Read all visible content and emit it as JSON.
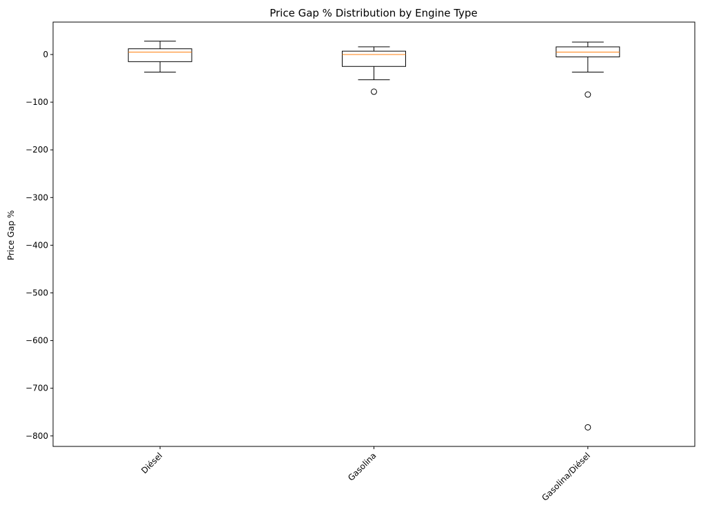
{
  "chart_data": {
    "type": "box",
    "title": "Price Gap % Distribution by Engine Type",
    "xlabel": "",
    "ylabel": "Price Gap %",
    "ylim": [
      -822,
      68
    ],
    "yticks": [
      0,
      -100,
      -200,
      -300,
      -400,
      -500,
      -600,
      -700,
      -800
    ],
    "ytick_labels": [
      "0",
      "−100",
      "−200",
      "−300",
      "−400",
      "−500",
      "−600",
      "−700",
      "−800"
    ],
    "categories": [
      "Diésel",
      "Gasolina",
      "Gasolina/Diésel"
    ],
    "xtick_rotation": 45,
    "grid": false,
    "boxes": [
      {
        "category": "Diésel",
        "whisker_low": -37,
        "q1": -15,
        "median": 5,
        "q3": 12,
        "whisker_high": 28,
        "outliers": []
      },
      {
        "category": "Gasolina",
        "whisker_low": -53,
        "q1": -25,
        "median": 0,
        "q3": 7,
        "whisker_high": 16,
        "outliers": [
          -78
        ]
      },
      {
        "category": "Gasolina/Diésel",
        "whisker_low": -37,
        "q1": -5,
        "median": 5,
        "q3": 16,
        "whisker_high": 26,
        "outliers": [
          -84,
          -782
        ]
      }
    ],
    "colors": {
      "box": "#000000",
      "median": "#ff7f0e",
      "outlier": "#000000",
      "frame": "#000000"
    }
  }
}
